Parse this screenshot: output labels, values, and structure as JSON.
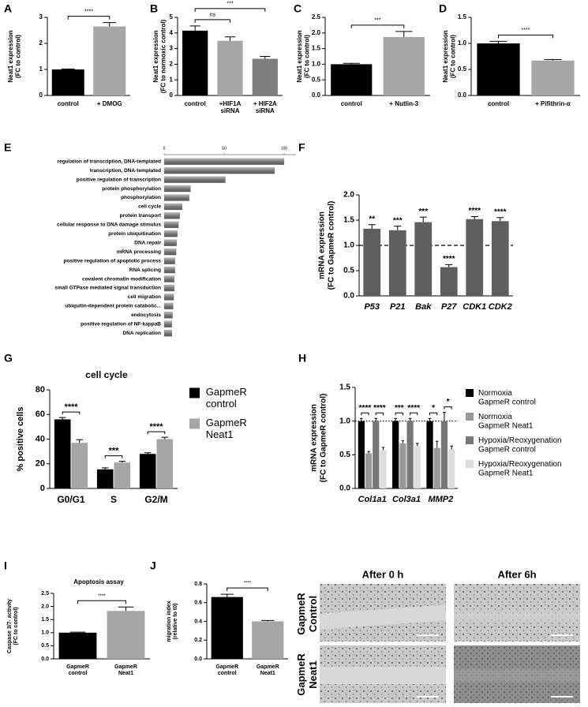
{
  "chart_data": [
    {
      "label": "A",
      "type": "bar",
      "ylabel": [
        "Neat1 expression",
        "(FC to control)"
      ],
      "categories": [
        "control",
        "+ DMOG"
      ],
      "values": [
        1.0,
        2.65
      ],
      "errors": [
        0.02,
        0.15
      ],
      "colors": [
        "#000000",
        "#a6a6a6"
      ],
      "ylim": [
        0,
        3
      ],
      "yticks": [
        0,
        1,
        2,
        3
      ],
      "brackets": [
        {
          "label": "****",
          "pair": [
            0,
            1
          ]
        }
      ]
    },
    {
      "label": "B",
      "type": "bar",
      "ylabel": [
        "Neat1 expression",
        "(FC to normoxic control)"
      ],
      "categories": [
        "control",
        "+HIF1A\nsiRNA",
        "+ HIF2A\nsiRNA"
      ],
      "values": [
        4.15,
        3.5,
        2.35
      ],
      "errors": [
        0.3,
        0.25,
        0.15
      ],
      "colors": [
        "#000000",
        "#a6a6a6",
        "#7f7f7f"
      ],
      "ylim": [
        0,
        5
      ],
      "yticks": [
        0,
        1,
        2,
        3,
        4,
        5
      ],
      "brackets": [
        {
          "label": "ns",
          "pair": [
            0,
            1
          ]
        },
        {
          "label": "***",
          "pair": [
            0,
            2
          ]
        }
      ]
    },
    {
      "label": "C",
      "type": "bar",
      "ylabel": [
        "Neat1 expression",
        "(FC to control)"
      ],
      "categories": [
        "control",
        "+ Nutlin-3"
      ],
      "values": [
        1.0,
        1.87
      ],
      "errors": [
        0.03,
        0.18
      ],
      "colors": [
        "#000000",
        "#a6a6a6"
      ],
      "ylim": [
        0,
        2.5
      ],
      "yticks": [
        {
          "value": 0,
          "label": "0.0"
        },
        0.5,
        {
          "value": 1,
          "label": "1.0"
        },
        1.5,
        {
          "value": 2,
          "label": "2.0"
        },
        2.5
      ],
      "brackets": [
        {
          "label": "***",
          "pair": [
            0,
            1
          ]
        }
      ]
    },
    {
      "label": "D",
      "type": "bar",
      "ylabel": [
        "Neat1 expression",
        "(FC to control)"
      ],
      "categories": [
        "control",
        "+ Pifithrin-α"
      ],
      "values": [
        1.0,
        0.67
      ],
      "errors": [
        0.04,
        0.02
      ],
      "colors": [
        "#000000",
        "#a6a6a6"
      ],
      "ylim": [
        0,
        1.5
      ],
      "yticks": [
        {
          "value": 0,
          "label": "0.0"
        },
        0.5,
        {
          "value": 1,
          "label": "1.0"
        },
        1.5
      ],
      "brackets": [
        {
          "label": "****",
          "pair": [
            0,
            1
          ]
        }
      ]
    },
    {
      "label": "E",
      "type": "barh",
      "color": "#8c8c8c",
      "categories": [
        "regulation of transcription, DNA-templated",
        "transcription, DNA-templated",
        "positive regulation of transcription",
        "protein phosphorylation",
        "phosphorylation",
        "cell cycle",
        "protein transport",
        "cellular response to DNA damage stimulus",
        "protein ubiquitination",
        "DNA repair",
        "mRNA processing",
        "positive regulation of apoptotic process",
        "RNA splicing",
        "covalent chromatin modification",
        "small GTPase mediated signal transduction",
        "cell migration",
        "ubiquitin-dependent protein catabolic...",
        "endocytosis",
        "positive regulation of NF-kappaB",
        "DNA replication"
      ],
      "values": [
        100,
        92,
        51,
        22,
        21,
        15,
        13,
        12,
        11,
        10.5,
        10,
        9,
        9,
        8.5,
        8.5,
        8,
        7.5,
        7,
        6.5,
        6.5
      ],
      "xlim": [
        0,
        100
      ],
      "xticks": [
        0,
        50,
        100
      ]
    },
    {
      "label": "F",
      "type": "bar",
      "ylabel": [
        "mRNA expression",
        "(FC to GapmeR control)"
      ],
      "categories": [
        "P53",
        "P21",
        "Bak",
        "P27",
        "CDK1",
        "CDK2"
      ],
      "values": [
        1.33,
        1.3,
        1.46,
        0.57,
        1.52,
        1.48
      ],
      "errors": [
        0.08,
        0.08,
        0.1,
        0.05,
        0.05,
        0.07
      ],
      "color": "#5f5f5f",
      "ylim": [
        0,
        2.0
      ],
      "yticks": [
        {
          "value": 0,
          "label": "0.0"
        },
        0.5,
        {
          "value": 1,
          "label": "1.0"
        },
        1.5,
        {
          "value": 2,
          "label": "2.0"
        }
      ],
      "refline": 1.0,
      "bar_labels": [
        "**",
        "***",
        "***",
        "****",
        "****",
        "****"
      ]
    },
    {
      "label": "G",
      "type": "bar",
      "title": "cell cycle",
      "ylabel": [
        "% positive cells"
      ],
      "categories": [
        "G0/G1",
        "S",
        "G2/M"
      ],
      "ylim": [
        0,
        80
      ],
      "yticks": [
        0,
        20,
        40,
        60,
        80
      ],
      "series": [
        {
          "name": "GapmeR\ncontrol",
          "color": "#000000",
          "values": [
            56,
            15.5,
            28
          ],
          "errors": [
            1.5,
            1.2,
            1
          ]
        },
        {
          "name": "GapmeR\nNeat1",
          "color": "#a6a6a6",
          "values": [
            37,
            21,
            40
          ],
          "errors": [
            2.5,
            1,
            1.5
          ]
        }
      ],
      "group_labels": [
        [
          "****"
        ],
        [
          "***"
        ],
        [
          "****"
        ]
      ]
    },
    {
      "label": "H",
      "type": "bar",
      "ylabel": [
        "mRNA expression",
        "(FC to GapmeR control)"
      ],
      "categories": [
        "Col1a1",
        "Col3a1",
        "MMP2"
      ],
      "ylim": [
        0,
        1.5
      ],
      "yticks": [
        {
          "value": 0,
          "label": "0.0"
        },
        0.5,
        {
          "value": 1,
          "label": "1.0"
        },
        1.5
      ],
      "refline": 1.0,
      "series": [
        {
          "name": "Normoxia\nGapmeR control",
          "color": "#000000",
          "values": [
            1.0,
            1.0,
            1.0
          ],
          "errors": [
            0.04,
            0.04,
            0.04
          ]
        },
        {
          "name": "Normoxia\nGapmeR Neat1",
          "color": "#999999",
          "values": [
            0.52,
            0.67,
            0.6
          ],
          "errors": [
            0.03,
            0.04,
            0.1
          ]
        },
        {
          "name": "Hypoxia/Reoxygenation\nGapmeR control",
          "color": "#777777",
          "values": [
            1.0,
            1.0,
            1.0
          ],
          "errors": [
            0.04,
            0.04,
            0.13
          ]
        },
        {
          "name": "Hypoxia/Reoxygenation\nGapmeR Neat1",
          "color": "#dddddd",
          "values": [
            0.57,
            0.63,
            0.58
          ],
          "errors": [
            0.04,
            0.04,
            0.05
          ]
        }
      ],
      "group_labels": [
        [
          "****",
          "****"
        ],
        [
          "***",
          "****"
        ],
        [
          "*",
          "*"
        ]
      ]
    },
    {
      "label": "I",
      "type": "bar",
      "title": "Apoptosis assay",
      "ylabel": [
        "Caspase 3/7- activity",
        "(FC to control)"
      ],
      "categories": [
        "GapmeR\ncontrol",
        "GapmeR\nNeat1"
      ],
      "values": [
        1.0,
        1.83
      ],
      "errors": [
        0.02,
        0.15
      ],
      "colors": [
        "#000000",
        "#a6a6a6"
      ],
      "ylim": [
        0,
        2.5
      ],
      "yticks": [
        {
          "value": 0,
          "label": "0.0"
        },
        0.5,
        {
          "value": 1,
          "label": "1.0"
        },
        1.5,
        {
          "value": 2,
          "label": "2.0"
        },
        2.5
      ],
      "brackets": [
        {
          "label": "****",
          "pair": [
            0,
            1
          ]
        }
      ]
    },
    {
      "label": "J",
      "type": "bar",
      "ylabel": [
        "migration index",
        "(relative to t0)"
      ],
      "categories": [
        "GapmeR\ncontrol",
        "GapmeR\nNeat1"
      ],
      "values": [
        0.66,
        0.4
      ],
      "errors": [
        0.03,
        0.01
      ],
      "colors": [
        "#000000",
        "#a6a6a6"
      ],
      "ylim": [
        0,
        0.8
      ],
      "yticks": [
        {
          "value": 0,
          "label": "0.0"
        },
        0.2,
        0.4,
        0.6,
        0.8
      ],
      "brackets": [
        {
          "label": "****",
          "pair": [
            0,
            1
          ]
        }
      ]
    }
  ],
  "micrographs": {
    "columns": [
      "After 0 h",
      "After 6h"
    ],
    "rows": [
      "GapmeR\nControl",
      "GapmeR\nNeat1"
    ]
  }
}
